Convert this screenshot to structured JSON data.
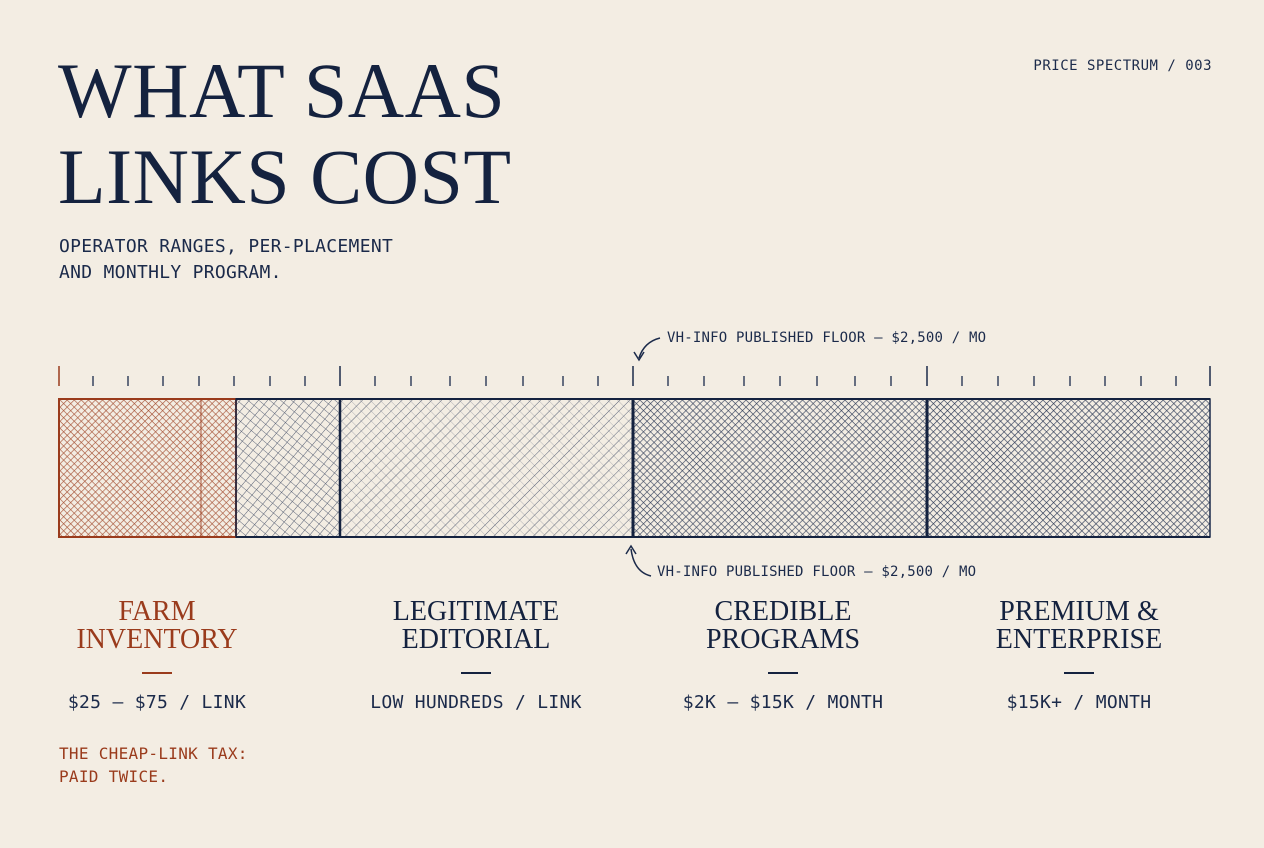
{
  "header": {
    "title_line1": "WHAT SAAS",
    "title_line2": "LINKS COST",
    "subtitle_line1": "OPERATOR RANGES, PER-PLACEMENT",
    "subtitle_line2": "AND MONTHLY PROGRAM.",
    "tag": "PRICE SPECTRUM / 003"
  },
  "annotations": {
    "top": "VH-INFO PUBLISHED FLOOR — $2,500 / MO",
    "bottom": "VH-INFO PUBLISHED FLOOR — $2,500 / MO"
  },
  "segments": [
    {
      "name_line1": "FARM",
      "name_line2": "INVENTORY",
      "price": "$25 – $75 / LINK"
    },
    {
      "name_line1": "LEGITIMATE",
      "name_line2": "EDITORIAL",
      "price": "LOW HUNDREDS / LINK"
    },
    {
      "name_line1": "CREDIBLE",
      "name_line2": "PROGRAMS",
      "price": "$2K – $15K / MONTH"
    },
    {
      "name_line1": "PREMIUM &",
      "name_line2": "ENTERPRISE",
      "price": "$15K+ / MONTH"
    }
  ],
  "footnote": {
    "line1": "THE CHEAP-LINK TAX:",
    "line2": "PAID TWICE."
  },
  "colors": {
    "background": "#f3ede3",
    "navy": "#14223f",
    "rust": "#9a3b1c"
  }
}
